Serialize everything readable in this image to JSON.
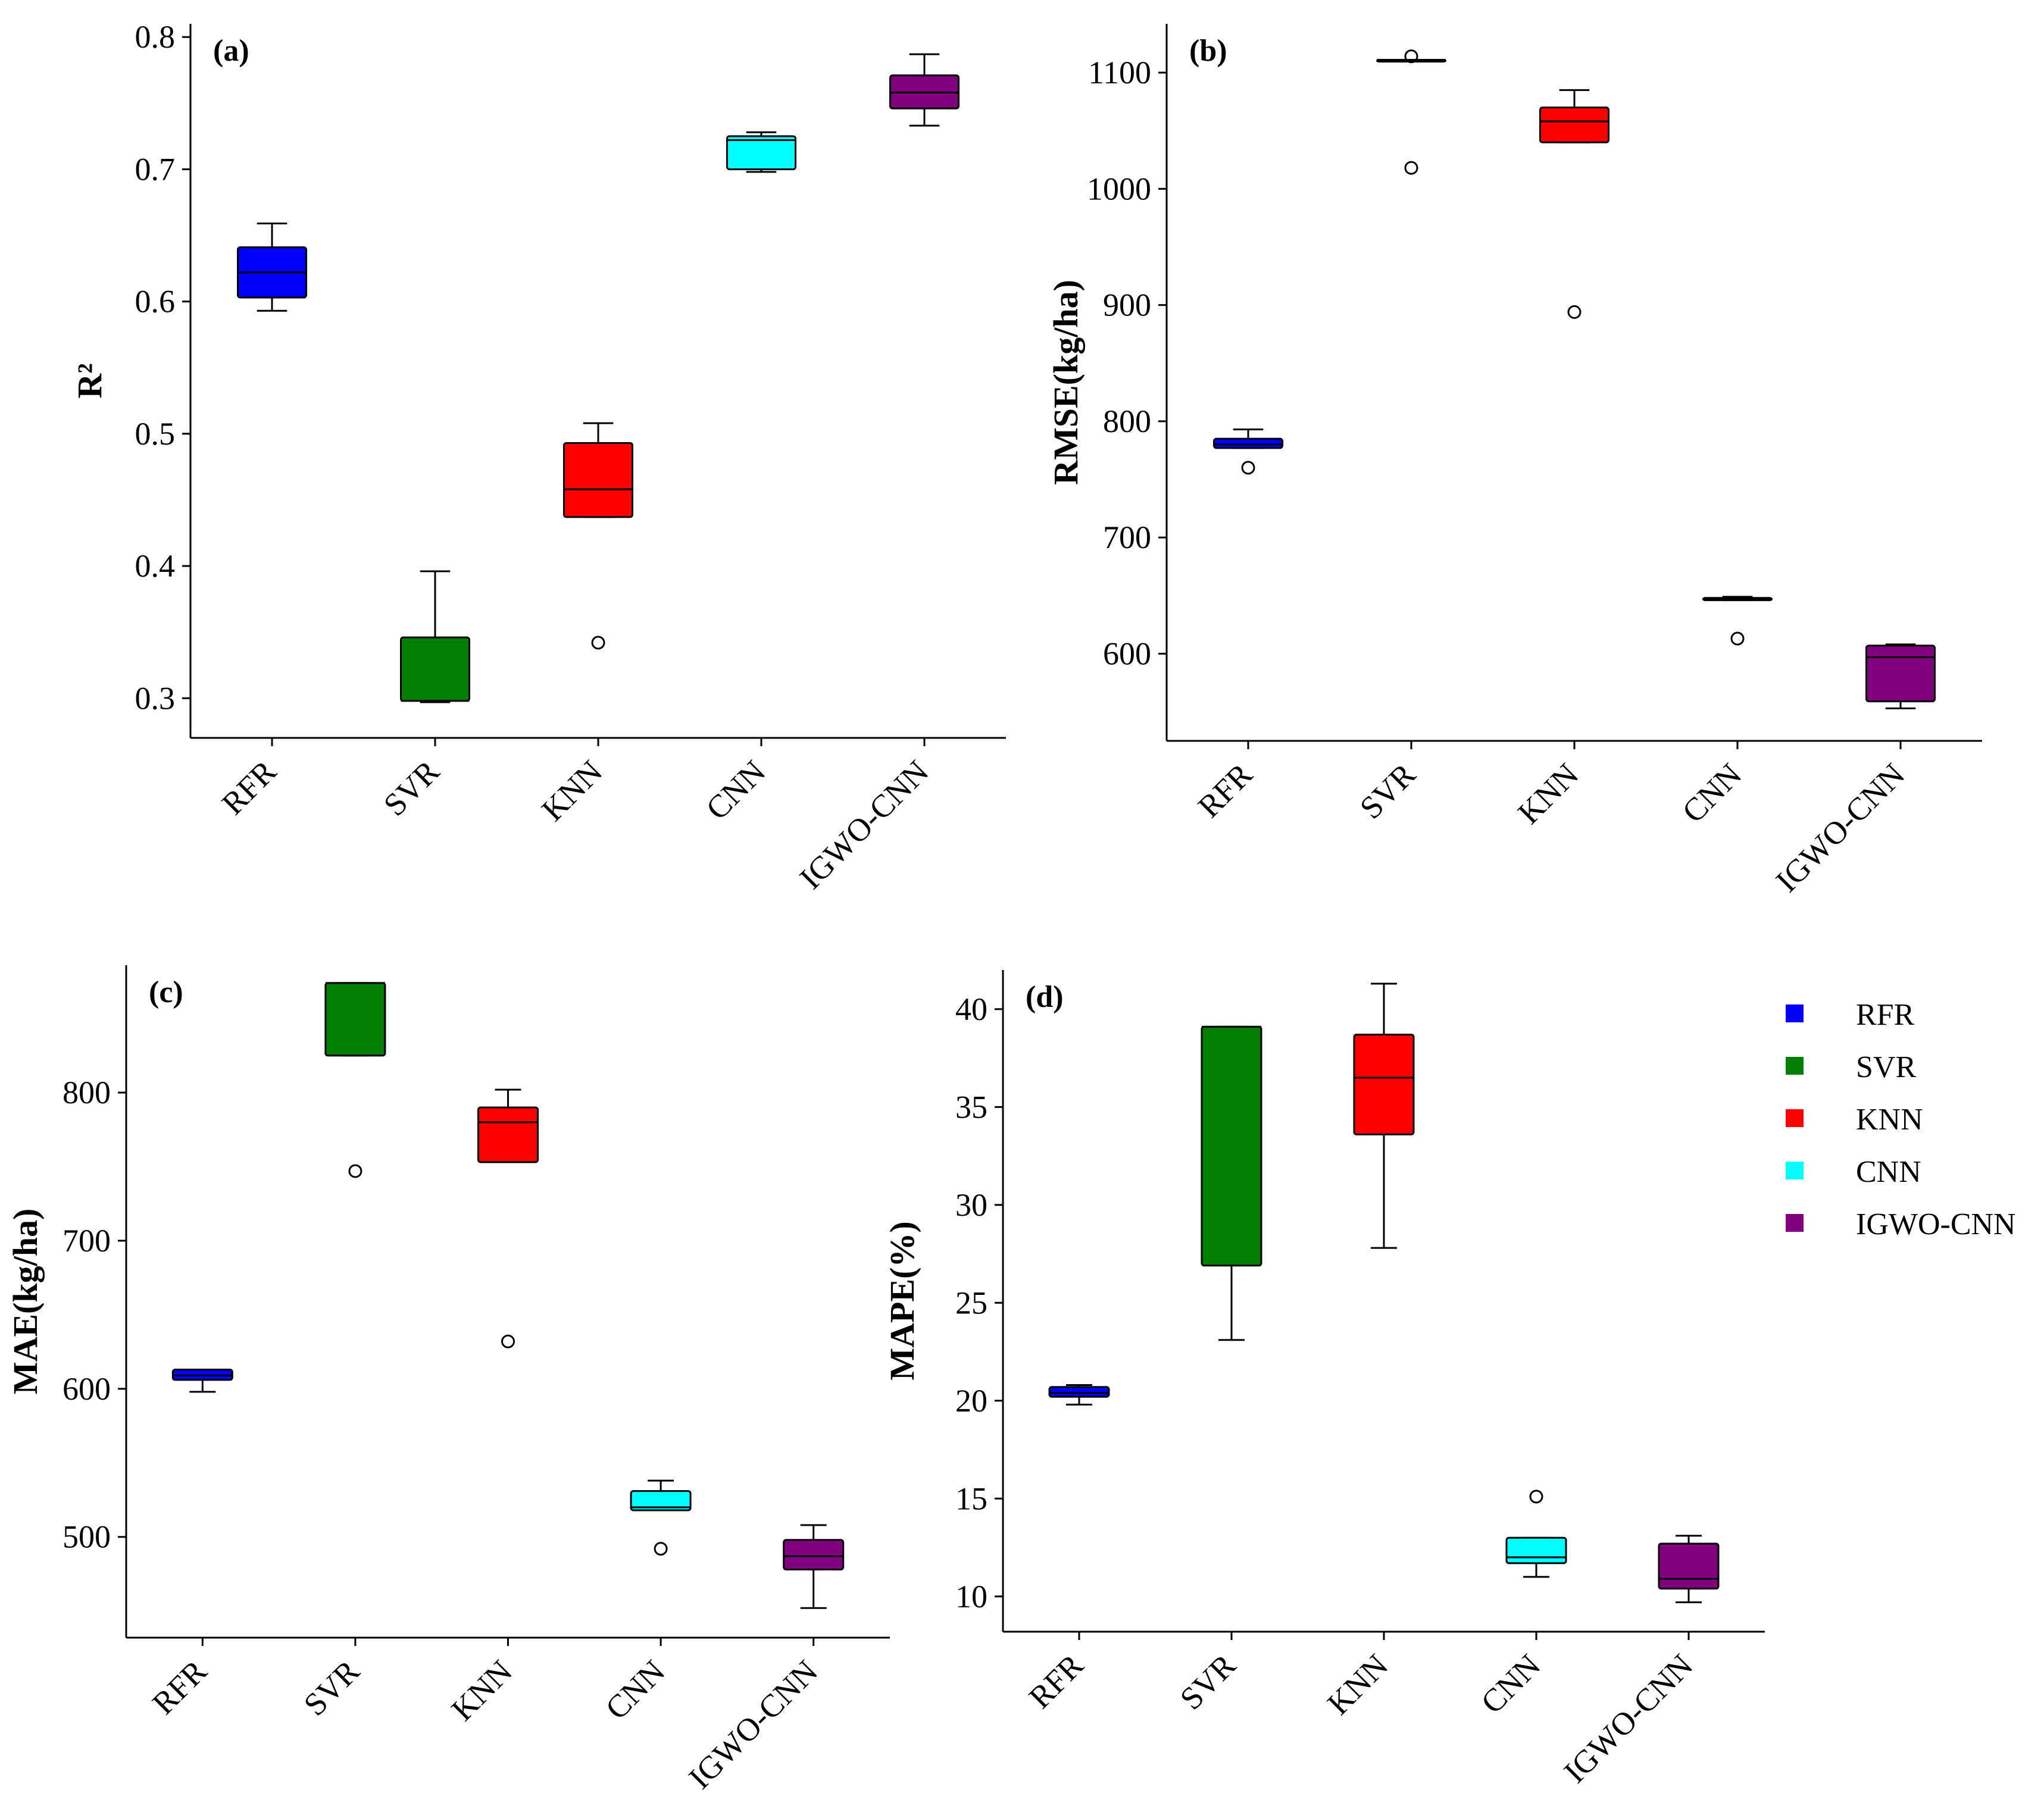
{
  "colors": {
    "RFR": "#0000ff",
    "SVR": "#007f00",
    "KNN": "#ff0000",
    "CNN": "#00ffff",
    "IGWO-CNN": "#800080"
  },
  "legend": {
    "items": [
      "RFR",
      "SVR",
      "KNN",
      "CNN",
      "IGWO-CNN"
    ]
  },
  "chart_data": [
    {
      "type": "box",
      "panel_label": "(a)",
      "ylabel": "R²",
      "categories": [
        "RFR",
        "SVR",
        "KNN",
        "CNN",
        "IGWO-CNN"
      ],
      "ylim": [
        0.27,
        0.81
      ],
      "yticks": [
        0.3,
        0.4,
        0.5,
        0.6,
        0.7,
        0.8
      ],
      "ytick_labels": [
        "0.3",
        "0.4",
        "0.5",
        "0.6",
        "0.7",
        "0.8"
      ],
      "boxes": [
        {
          "min": 0.593,
          "q1": 0.603,
          "median": 0.622,
          "q3": 0.641,
          "max": 0.659,
          "outliers": []
        },
        {
          "min": 0.297,
          "q1": 0.298,
          "median": 0.298,
          "q3": 0.346,
          "max": 0.396,
          "outliers": []
        },
        {
          "min": 0.437,
          "q1": 0.437,
          "median": 0.458,
          "q3": 0.493,
          "max": 0.508,
          "outliers": [
            0.342
          ]
        },
        {
          "min": 0.698,
          "q1": 0.7,
          "median": 0.722,
          "q3": 0.725,
          "max": 0.728,
          "outliers": []
        },
        {
          "min": 0.733,
          "q1": 0.746,
          "median": 0.758,
          "q3": 0.771,
          "max": 0.787,
          "outliers": []
        }
      ]
    },
    {
      "type": "box",
      "panel_label": "(b)",
      "ylabel": "RMSE(kg/ha)",
      "categories": [
        "RFR",
        "SVR",
        "KNN",
        "CNN",
        "IGWO-CNN"
      ],
      "ylim": [
        525,
        1142
      ],
      "yticks": [
        600,
        700,
        800,
        900,
        1000,
        1100
      ],
      "ytick_labels": [
        "600",
        "700",
        "800",
        "900",
        "1000",
        "1100"
      ],
      "boxes": [
        {
          "min": 777,
          "q1": 777,
          "median": 780,
          "q3": 785,
          "max": 793,
          "outliers": [
            760
          ]
        },
        {
          "min": 1111,
          "q1": 1111,
          "median": 1111,
          "q3": 1111,
          "max": 1111,
          "outliers": [
            1114,
            1018
          ]
        },
        {
          "min": 1040,
          "q1": 1040,
          "median": 1058,
          "q3": 1070,
          "max": 1085,
          "outliers": [
            894
          ]
        },
        {
          "min": 646,
          "q1": 646,
          "median": 647,
          "q3": 648,
          "max": 649,
          "outliers": [
            613
          ]
        },
        {
          "min": 553,
          "q1": 559,
          "median": 597,
          "q3": 607,
          "max": 608,
          "outliers": []
        }
      ]
    },
    {
      "type": "box",
      "panel_label": "(c)",
      "ylabel": "MAE(kg/ha)",
      "categories": [
        "RFR",
        "SVR",
        "KNN",
        "CNN",
        "IGWO-CNN"
      ],
      "ylim": [
        432,
        886
      ],
      "yticks": [
        500,
        600,
        700,
        800
      ],
      "ytick_labels": [
        "500",
        "600",
        "700",
        "800"
      ],
      "boxes": [
        {
          "min": 598,
          "q1": 606,
          "median": 609,
          "q3": 613,
          "max": 613,
          "outliers": []
        },
        {
          "min": 825,
          "q1": 825,
          "median": 874,
          "q3": 874,
          "max": 874,
          "outliers": [
            747
          ]
        },
        {
          "min": 753,
          "q1": 753,
          "median": 780,
          "q3": 790,
          "max": 802,
          "outliers": [
            632
          ]
        },
        {
          "min": 518,
          "q1": 518,
          "median": 520,
          "q3": 531,
          "max": 538,
          "outliers": [
            492
          ]
        },
        {
          "min": 452,
          "q1": 478,
          "median": 487,
          "q3": 498,
          "max": 508,
          "outliers": []
        }
      ]
    },
    {
      "type": "box",
      "panel_label": "(d)",
      "ylabel": "MAPE(%)",
      "categories": [
        "RFR",
        "SVR",
        "KNN",
        "CNN",
        "IGWO-CNN"
      ],
      "ylim": [
        8.2,
        42.0
      ],
      "yticks": [
        10,
        15,
        20,
        25,
        30,
        35,
        40
      ],
      "ytick_labels": [
        "10",
        "15",
        "20",
        "25",
        "30",
        "35",
        "40"
      ],
      "boxes": [
        {
          "min": 19.8,
          "q1": 20.2,
          "median": 20.4,
          "q3": 20.7,
          "max": 20.8,
          "outliers": []
        },
        {
          "min": 23.1,
          "q1": 26.9,
          "median": 39.1,
          "q3": 39.1,
          "max": 39.1,
          "outliers": []
        },
        {
          "min": 27.8,
          "q1": 33.6,
          "median": 36.5,
          "q3": 38.7,
          "max": 41.3,
          "outliers": []
        },
        {
          "min": 11.0,
          "q1": 11.7,
          "median": 12.0,
          "q3": 13.0,
          "max": 13.0,
          "outliers": [
            15.1
          ]
        },
        {
          "min": 9.7,
          "q1": 10.4,
          "median": 10.9,
          "q3": 12.7,
          "max": 13.1,
          "outliers": []
        }
      ]
    }
  ]
}
